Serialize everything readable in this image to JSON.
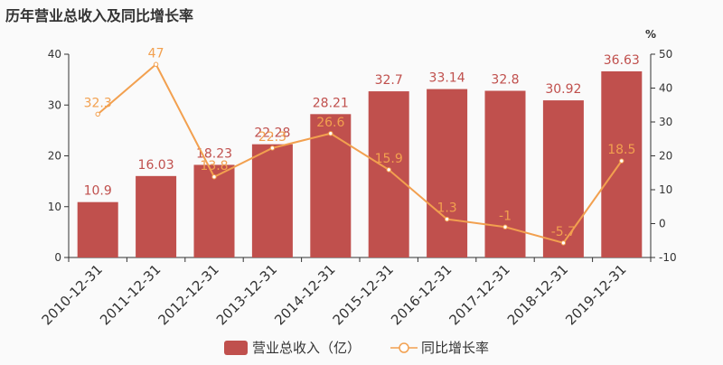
{
  "chart_data": {
    "type": "bar",
    "title": "历年营业总收入及同比增长率",
    "categories": [
      "2010-12-31",
      "2011-12-31",
      "2012-12-31",
      "2013-12-31",
      "2014-12-31",
      "2015-12-31",
      "2016-12-31",
      "2017-12-31",
      "2018-12-31",
      "2019-12-31"
    ],
    "series": [
      {
        "name": "营业总收入（亿）",
        "type": "bar",
        "axis": "left",
        "values": [
          10.9,
          16.03,
          18.23,
          22.28,
          28.21,
          32.7,
          33.14,
          32.8,
          30.92,
          36.63
        ],
        "labels": [
          "10.9",
          "16.03",
          "18.23",
          "22.28",
          "28.21",
          "32.7",
          "33.14",
          "32.8",
          "30.92",
          "36.63"
        ],
        "color": "#c0504d"
      },
      {
        "name": "同比增长率",
        "type": "line",
        "axis": "right",
        "values": [
          32.3,
          47,
          13.8,
          22.3,
          26.6,
          15.9,
          1.3,
          -1,
          -5.7,
          18.5
        ],
        "labels": [
          "32.3",
          "47",
          "13.8",
          "22.3",
          "26.6",
          "15.9",
          "1.3",
          "-1",
          "-5.7",
          "18.5"
        ],
        "color": "#f2a04f"
      }
    ],
    "y_left": {
      "min": 0,
      "max": 40,
      "ticks": [
        "0",
        "10",
        "20",
        "30",
        "40"
      ]
    },
    "y_right": {
      "min": -10,
      "max": 50,
      "ticks": [
        "-10",
        "0",
        "10",
        "20",
        "30",
        "40",
        "50"
      ],
      "unit": "%"
    },
    "grid": false,
    "legend_position": "bottom-center"
  }
}
